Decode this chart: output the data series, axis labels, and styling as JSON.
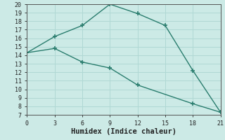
{
  "xlabel": "Humidex (Indice chaleur)",
  "line1_x": [
    0,
    3,
    6,
    9,
    12,
    15,
    18,
    21
  ],
  "line1_y": [
    14.3,
    16.2,
    17.5,
    20.0,
    18.9,
    17.5,
    12.2,
    7.3
  ],
  "line2_x": [
    0,
    3,
    6,
    9,
    12,
    18,
    21
  ],
  "line2_y": [
    14.3,
    14.8,
    13.2,
    12.5,
    10.5,
    8.3,
    7.3
  ],
  "line_color": "#2a7d6e",
  "bg_color": "#cceae6",
  "grid_color": "#b0d8d4",
  "xlim": [
    0,
    21
  ],
  "ylim": [
    7,
    20
  ],
  "xticks": [
    0,
    3,
    6,
    9,
    12,
    15,
    18,
    21
  ],
  "yticks": [
    7,
    8,
    9,
    10,
    11,
    12,
    13,
    14,
    15,
    16,
    17,
    18,
    19,
    20
  ]
}
